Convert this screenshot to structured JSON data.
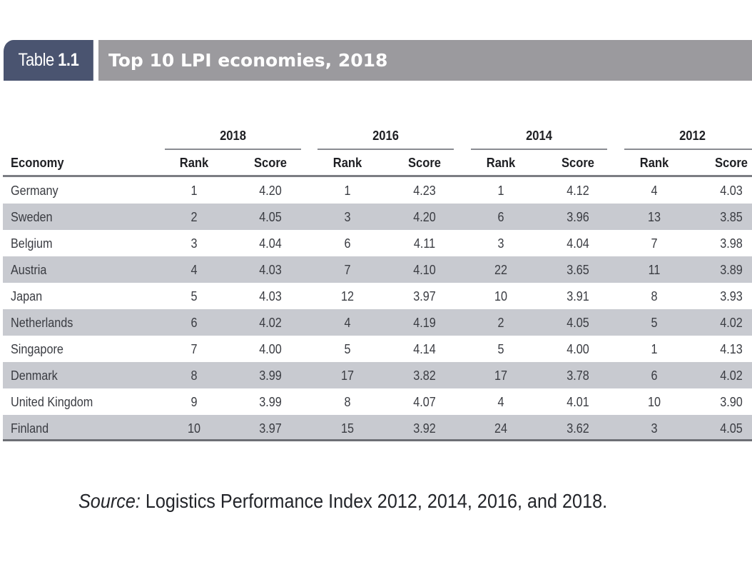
{
  "header": {
    "label_prefix": "Table",
    "label_number": "1.1",
    "title": "Top 10 LPI economies, 2018"
  },
  "table": {
    "economy_header": "Economy",
    "years": [
      "2018",
      "2016",
      "2014",
      "2012"
    ],
    "sub_headers": {
      "rank": "Rank",
      "score": "Score"
    },
    "rows": [
      {
        "economy": "Germany",
        "values": [
          [
            "1",
            "4.20"
          ],
          [
            "1",
            "4.23"
          ],
          [
            "1",
            "4.12"
          ],
          [
            "4",
            "4.03"
          ]
        ]
      },
      {
        "economy": "Sweden",
        "values": [
          [
            "2",
            "4.05"
          ],
          [
            "3",
            "4.20"
          ],
          [
            "6",
            "3.96"
          ],
          [
            "13",
            "3.85"
          ]
        ]
      },
      {
        "economy": "Belgium",
        "values": [
          [
            "3",
            "4.04"
          ],
          [
            "6",
            "4.11"
          ],
          [
            "3",
            "4.04"
          ],
          [
            "7",
            "3.98"
          ]
        ]
      },
      {
        "economy": "Austria",
        "values": [
          [
            "4",
            "4.03"
          ],
          [
            "7",
            "4.10"
          ],
          [
            "22",
            "3.65"
          ],
          [
            "11",
            "3.89"
          ]
        ]
      },
      {
        "economy": "Japan",
        "values": [
          [
            "5",
            "4.03"
          ],
          [
            "12",
            "3.97"
          ],
          [
            "10",
            "3.91"
          ],
          [
            "8",
            "3.93"
          ]
        ]
      },
      {
        "economy": "Netherlands",
        "values": [
          [
            "6",
            "4.02"
          ],
          [
            "4",
            "4.19"
          ],
          [
            "2",
            "4.05"
          ],
          [
            "5",
            "4.02"
          ]
        ]
      },
      {
        "economy": "Singapore",
        "values": [
          [
            "7",
            "4.00"
          ],
          [
            "5",
            "4.14"
          ],
          [
            "5",
            "4.00"
          ],
          [
            "1",
            "4.13"
          ]
        ]
      },
      {
        "economy": "Denmark",
        "values": [
          [
            "8",
            "3.99"
          ],
          [
            "17",
            "3.82"
          ],
          [
            "17",
            "3.78"
          ],
          [
            "6",
            "4.02"
          ]
        ]
      },
      {
        "economy": "United Kingdom",
        "values": [
          [
            "9",
            "3.99"
          ],
          [
            "8",
            "4.07"
          ],
          [
            "4",
            "4.01"
          ],
          [
            "10",
            "3.90"
          ]
        ]
      },
      {
        "economy": "Finland",
        "values": [
          [
            "10",
            "3.97"
          ],
          [
            "15",
            "3.92"
          ],
          [
            "24",
            "3.62"
          ],
          [
            "3",
            "4.05"
          ]
        ]
      }
    ]
  },
  "source": {
    "lead": "Source:",
    "text": " Logistics Performance Index 2012, 2014, 2016, and 2018."
  },
  "colors": {
    "label_tab": "#4a5470",
    "title_bar": "#9b9a9e",
    "shaded_row": "#c8cad0"
  }
}
